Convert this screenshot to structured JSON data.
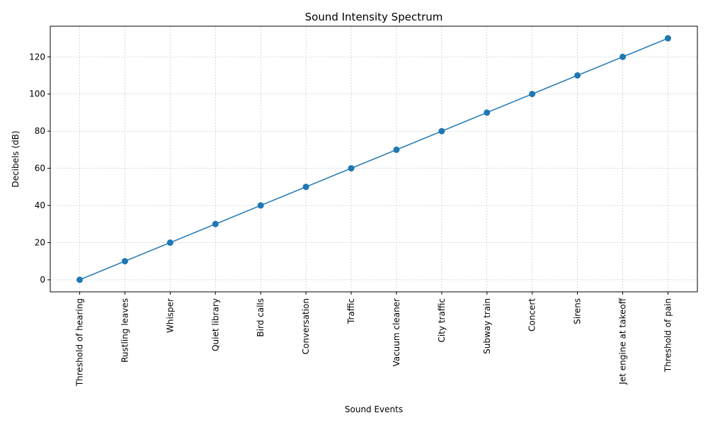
{
  "chart_data": {
    "type": "line",
    "title": "Sound Intensity Spectrum",
    "xlabel": "Sound Events",
    "ylabel": "Decibels (dB)",
    "categories": [
      "Threshold of hearing",
      "Rustling leaves",
      "Whisper",
      "Quiet library",
      "Bird calls",
      "Conversation",
      "Traffic",
      "Vacuum cleaner",
      "City traffic",
      "Subway train",
      "Concert",
      "Sirens",
      "Jet engine at takeoff",
      "Threshold of pain"
    ],
    "values": [
      0,
      10,
      20,
      30,
      40,
      50,
      60,
      70,
      80,
      90,
      100,
      110,
      120,
      130
    ],
    "ylim": [
      -6.5,
      136.5
    ],
    "yticks": [
      0,
      20,
      40,
      60,
      80,
      100,
      120
    ],
    "ytick_labels": [
      "0",
      "20",
      "40",
      "60",
      "80",
      "100",
      "120"
    ],
    "grid": true,
    "line_color": "#1f77b4",
    "marker": "circle"
  }
}
